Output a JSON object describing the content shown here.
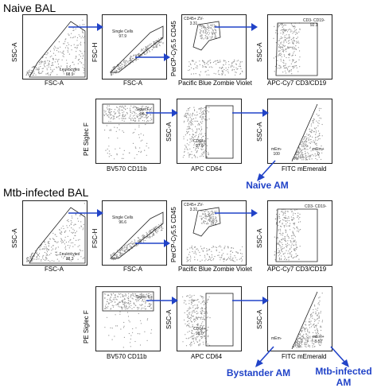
{
  "colors": {
    "accent": "#2143c8",
    "gate": "#222222",
    "dots": "#333333"
  },
  "sections": [
    {
      "title": "Naive BAL",
      "row1": [
        {
          "x": "FSC-A",
          "y": "SSC-A",
          "gates": [
            {
              "name": "Leukocytes",
              "value": "68.9"
            }
          ]
        },
        {
          "x": "FSC-A",
          "y": "FSC-H",
          "gates": [
            {
              "name": "Single Cells",
              "value": "97.9"
            }
          ]
        },
        {
          "x": "Pacific Blue Zombie Violet",
          "y": "PerCP-Cy5.5 CD45",
          "gates": [
            {
              "name": "CD45+ ZV-",
              "value": "3.31"
            }
          ]
        },
        {
          "x": "APC-Cy7 CD3/CD19",
          "y": "SSC-A",
          "gates": [
            {
              "name": "CD3- CD19-",
              "value": "92.1"
            }
          ]
        }
      ],
      "row2": [
        {
          "x": "BV570 CD11b",
          "y": "PE Siglec F",
          "gates": [
            {
              "name": "SiglecF+",
              "value": "98.3"
            }
          ]
        },
        {
          "x": "APC CD64",
          "y": "SSC-A",
          "gates": [
            {
              "name": "CD64+",
              "value": "97.6"
            }
          ]
        },
        {
          "x": "FITC mEmerald",
          "y": "SSC-A",
          "gates": [
            {
              "name": "mEm-",
              "value": "100"
            },
            {
              "name": "mEm+",
              "value": "0"
            }
          ]
        }
      ],
      "populations": [
        "Naive AM"
      ]
    },
    {
      "title": "Mtb-infected BAL",
      "row1": [
        {
          "x": "FSC-A",
          "y": "SSC-A",
          "gates": [
            {
              "name": "Leukocytes",
              "value": "38.3"
            }
          ]
        },
        {
          "x": "FSC-A",
          "y": "FSC-H",
          "gates": [
            {
              "name": "Single Cells",
              "value": "96.6"
            }
          ]
        },
        {
          "x": "Pacific Blue Zombie Violet",
          "y": "PerCP-Cy5.5 CD45",
          "gates": [
            {
              "name": "CD45+ ZV-",
              "value": "3.31"
            }
          ]
        },
        {
          "x": "APC-Cy7 CD3/CD19",
          "y": "SSC-A",
          "gates": [
            {
              "name": "CD3- CD19-",
              "value": ""
            }
          ]
        }
      ],
      "row2": [
        {
          "x": "BV570 CD11b",
          "y": "PE Siglec F",
          "gates": [
            {
              "name": "Siglec F+",
              "value": ""
            }
          ]
        },
        {
          "x": "APC CD64",
          "y": "SSC-A",
          "gates": [
            {
              "name": "CD64+",
              "value": "98.0"
            }
          ]
        },
        {
          "x": "FITC mEmerald",
          "y": "SSC-A",
          "gates": [
            {
              "name": "mEm-",
              "value": ""
            },
            {
              "name": "mEm+",
              "value": "8.52"
            }
          ]
        }
      ],
      "populations": [
        "Bystander AM",
        "Mtb-infected AM"
      ]
    }
  ]
}
